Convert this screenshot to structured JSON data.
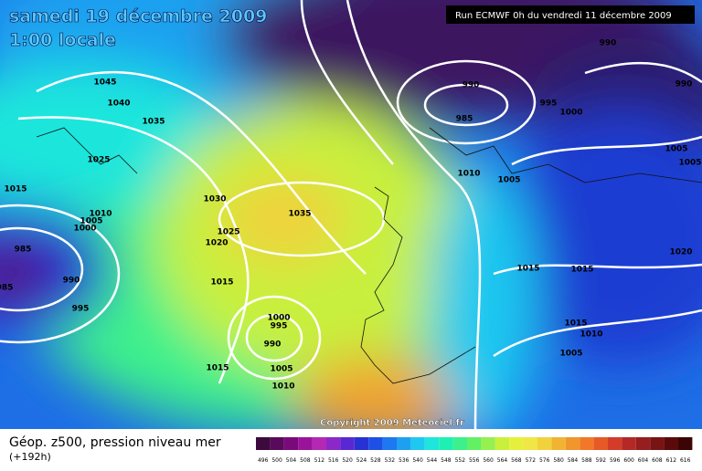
{
  "header": {
    "date": "samedi 19 décembre 2009",
    "time": "1:00 locale",
    "run": "Run ECMWF 0h du vendredi 11 décembre 2009"
  },
  "footer": {
    "title": "Géop. z500, pression niveau mer",
    "lead": "(+192h)",
    "copyright": "Copyright 2009 Meteociel.fr"
  },
  "scale": {
    "labels": [
      496,
      500,
      504,
      508,
      512,
      516,
      520,
      524,
      528,
      532,
      536,
      540,
      544,
      548,
      552,
      556,
      560,
      564,
      568,
      572,
      576,
      580,
      584,
      588,
      592,
      596,
      600,
      604,
      608,
      612,
      616
    ],
    "colors": [
      "#3c0a3c",
      "#5a0a5a",
      "#7a0a7a",
      "#9a149a",
      "#b428b4",
      "#8c28c8",
      "#5a28d2",
      "#2832d2",
      "#1e50e6",
      "#1e78f0",
      "#1ea0f0",
      "#1ec8f0",
      "#1ee6dc",
      "#1ef0b4",
      "#3cf08c",
      "#64f064",
      "#96f050",
      "#c8f03c",
      "#e6f03c",
      "#f0e646",
      "#f0d23c",
      "#f0b432",
      "#f0962d",
      "#f07828",
      "#e65a28",
      "#d23c28",
      "#b42828",
      "#961e1e",
      "#781414",
      "#5a0a0a",
      "#3c0505"
    ]
  },
  "isobars": [
    1045,
    1040,
    1035,
    1025,
    1015,
    1030,
    1010,
    1005,
    1000,
    1035,
    1025,
    1020,
    985,
    985,
    990,
    995,
    1015,
    1000,
    995,
    990,
    1005,
    1015,
    1010,
    990,
    985,
    995,
    1000,
    990,
    990,
    1010,
    1005,
    1005,
    1005,
    1020,
    1015,
    1015,
    1015,
    1010,
    1005
  ]
}
